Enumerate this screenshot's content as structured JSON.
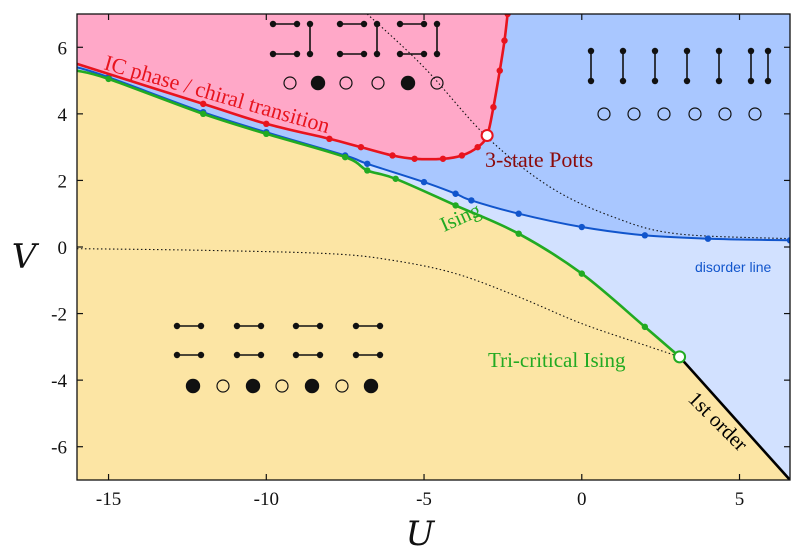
{
  "chart_data": {
    "type": "line",
    "title": "",
    "xlabel": "U",
    "ylabel": "V",
    "xlim": [
      -16,
      6.6
    ],
    "ylim": [
      -7,
      7
    ],
    "xticks": [
      -15,
      -10,
      -5,
      0,
      5
    ],
    "yticks": [
      -6,
      -4,
      -2,
      0,
      2,
      4,
      6
    ],
    "grid": false,
    "colors": {
      "ic_region": "#ffa8c8",
      "disordered_region": "#a9c7ff",
      "light_blue_region": "#d2e1ff",
      "ordered_region": "#fce5a4",
      "ic_line": "#e8141e",
      "disorder_line": "#1155cc",
      "ising_line": "#22aa22",
      "first_order_line": "#000000",
      "potts_label": "#8b0a0a"
    },
    "series": [
      {
        "name": "IC phase / chiral transition",
        "x": [
          -16,
          -12,
          -10,
          -8,
          -7,
          -6,
          -5.3,
          -4.4,
          -3.8,
          -3.3,
          -3.0,
          -2.8,
          -2.6,
          -2.45,
          -2.35
        ],
        "y": [
          5.5,
          4.3,
          3.7,
          3.25,
          3.0,
          2.75,
          2.65,
          2.65,
          2.75,
          3.0,
          3.35,
          4.2,
          5.3,
          6.2,
          7.0
        ]
      },
      {
        "name": "disorder line",
        "x": [
          -16,
          -15,
          -12,
          -10,
          -7.5,
          -6.8,
          -5,
          -4,
          -3.5,
          -2,
          0,
          2,
          4,
          6.6
        ],
        "y": [
          5.4,
          5.1,
          4.05,
          3.45,
          2.75,
          2.5,
          1.95,
          1.6,
          1.4,
          1.0,
          0.6,
          0.35,
          0.25,
          0.2
        ]
      },
      {
        "name": "Ising",
        "x": [
          -16,
          -15,
          -12,
          -10,
          -7.5,
          -6.8,
          -5.9,
          -4,
          -2,
          0,
          2,
          3.1
        ],
        "y": [
          5.3,
          5.05,
          4.0,
          3.4,
          2.7,
          2.3,
          2.05,
          1.25,
          0.4,
          -0.8,
          -2.4,
          -3.3
        ]
      },
      {
        "name": "1st order",
        "x": [
          3.1,
          6.6
        ],
        "y": [
          -3.3,
          -7.0
        ]
      }
    ],
    "dotted_lines": [
      {
        "x": [
          -16,
          -12,
          -8,
          -6,
          -4,
          -2,
          0,
          2,
          3.1
        ],
        "y": [
          -0.05,
          -0.1,
          -0.2,
          -0.4,
          -0.8,
          -1.5,
          -2.3,
          -2.95,
          -3.3
        ]
      },
      {
        "x": [
          -6.8,
          -5,
          -3,
          -1,
          1,
          3,
          6.6
        ],
        "y": [
          7.0,
          5.4,
          3.3,
          1.8,
          0.9,
          0.4,
          0.25
        ]
      }
    ],
    "special_points": [
      {
        "name": "3-state Potts",
        "x": -3.0,
        "y": 3.35
      },
      {
        "name": "Tri-critical Ising",
        "x": 3.1,
        "y": -3.3
      }
    ],
    "annotations": [
      {
        "text": "IC phase / chiral transition"
      },
      {
        "text": "3-state Potts"
      },
      {
        "text": "Ising"
      },
      {
        "text": "disorder line"
      },
      {
        "text": "Tri-critical Ising"
      },
      {
        "text": "1st order"
      }
    ]
  }
}
